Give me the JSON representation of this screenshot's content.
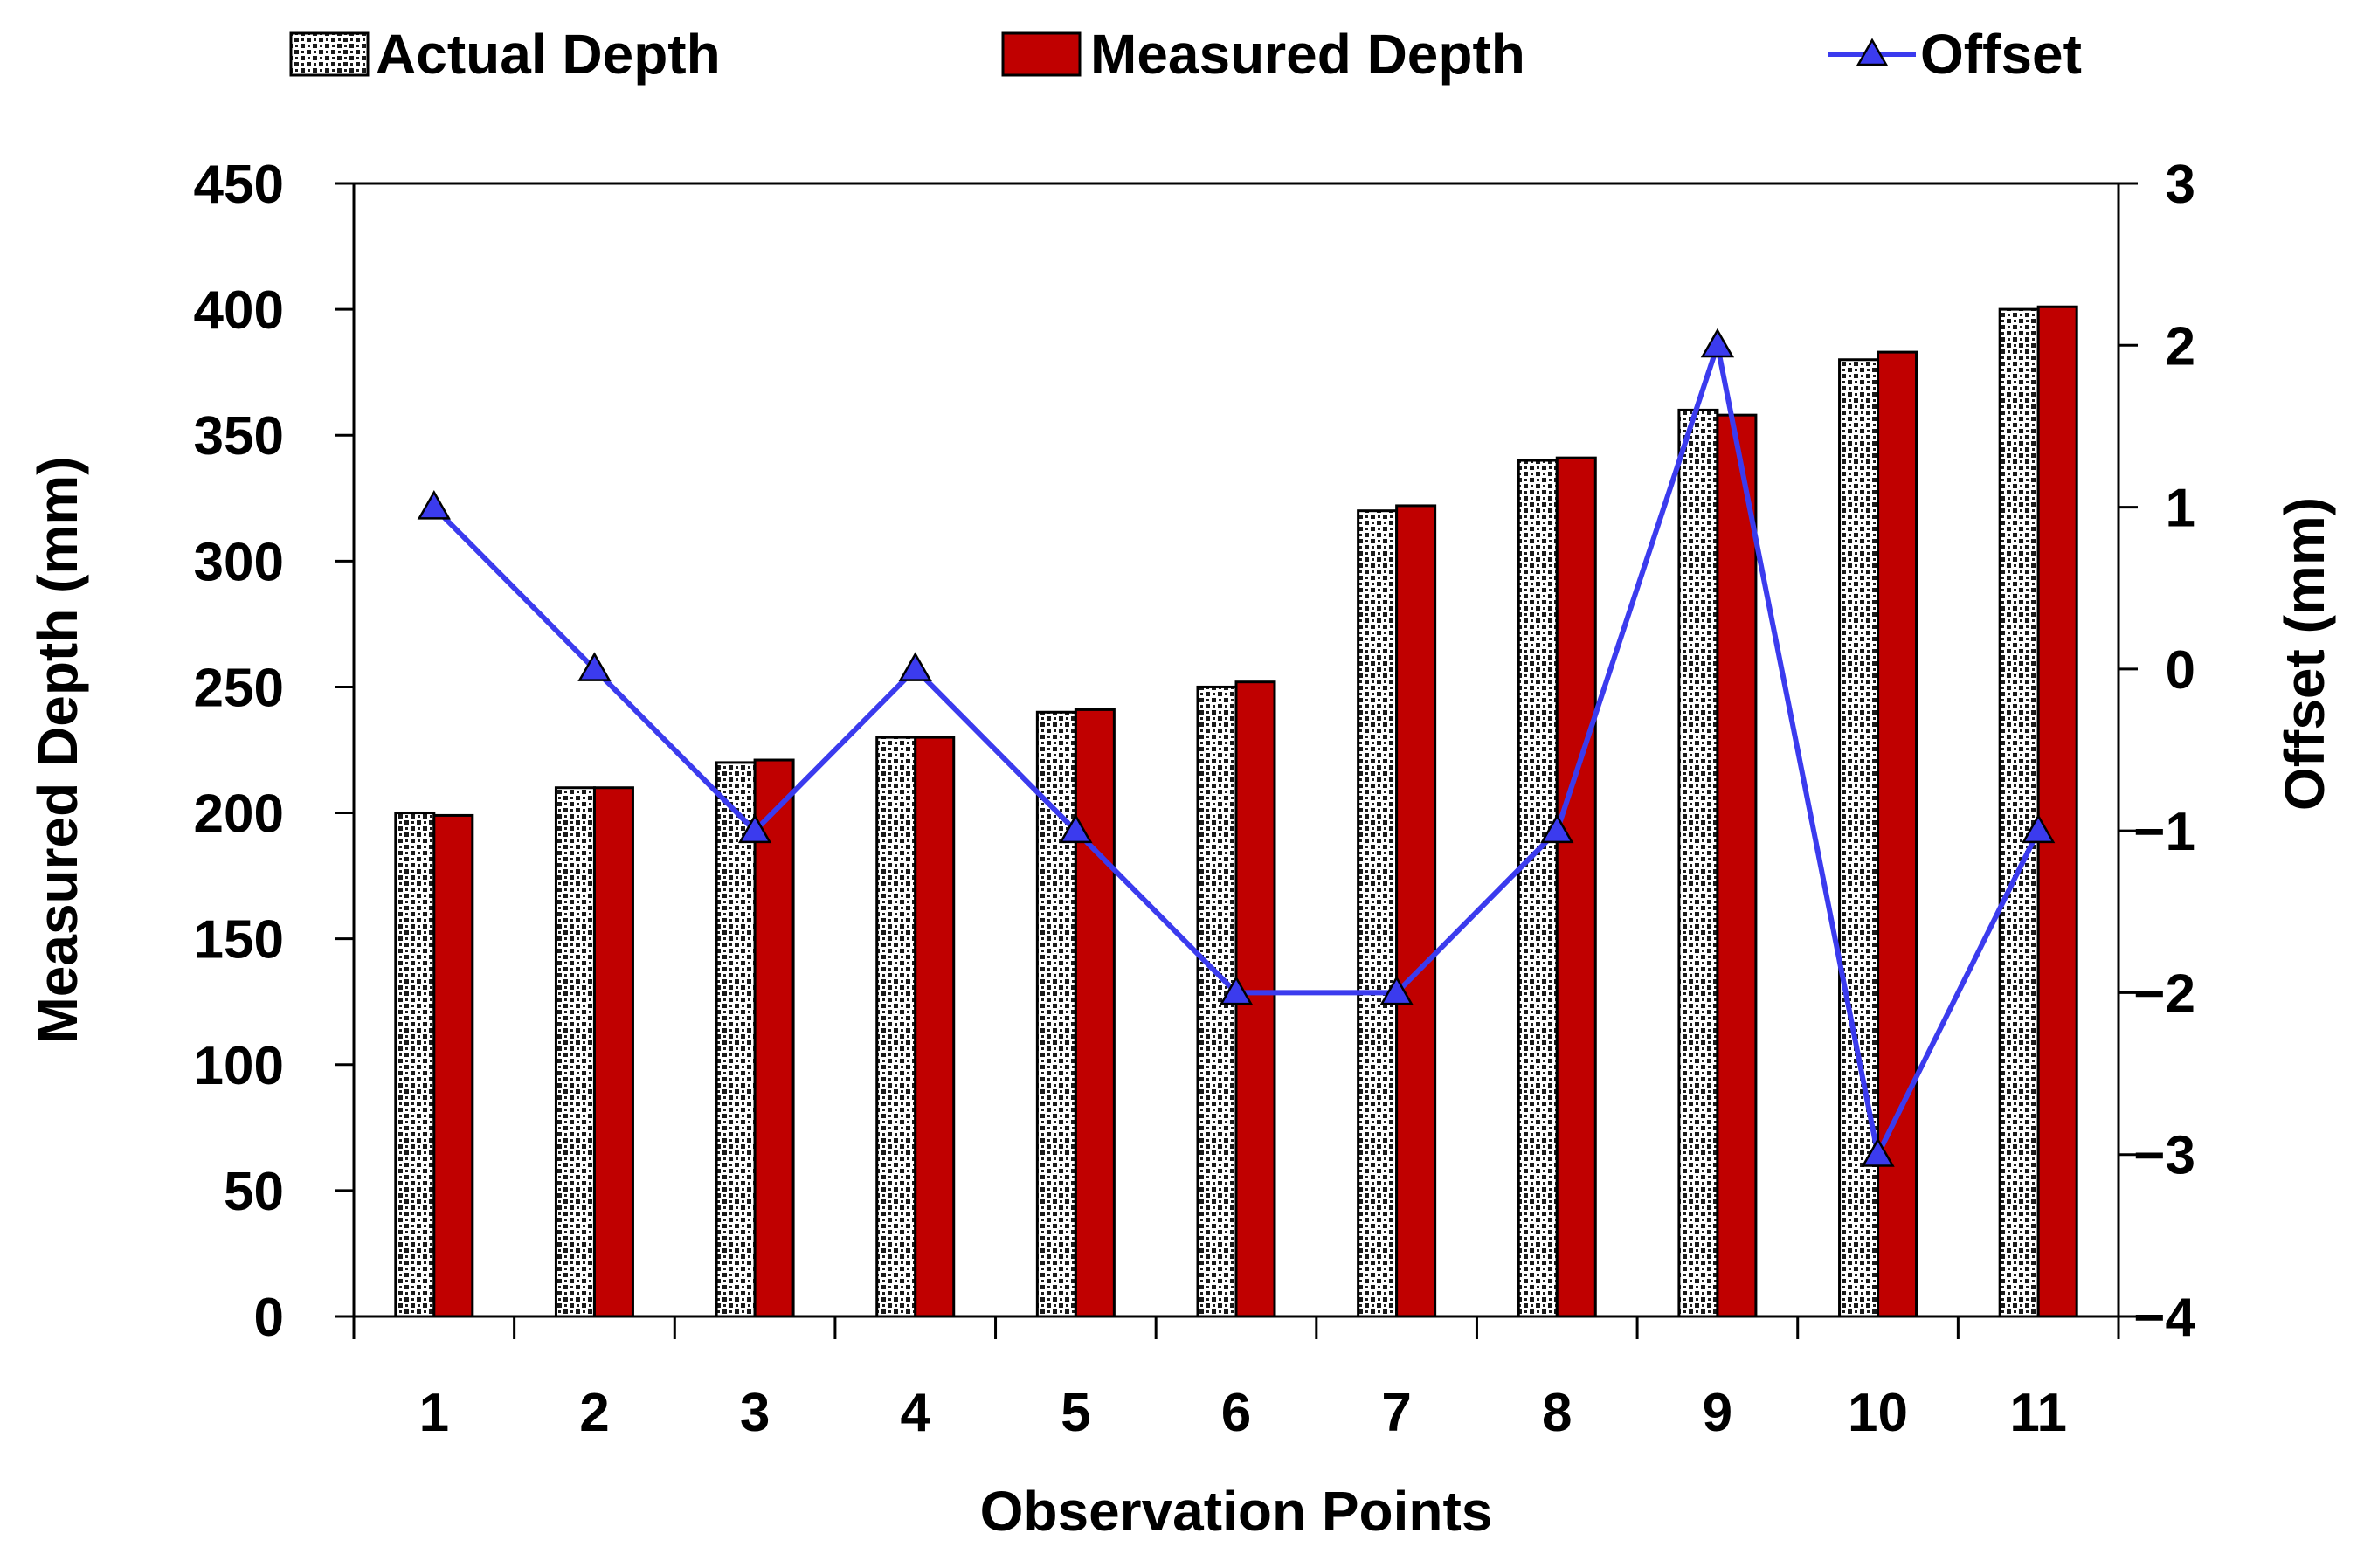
{
  "chart_data": {
    "type": "bar",
    "categories": [
      "1",
      "2",
      "3",
      "4",
      "5",
      "6",
      "7",
      "8",
      "9",
      "10",
      "11"
    ],
    "series": [
      {
        "name": "Actual Depth",
        "kind": "bar",
        "axis": "left",
        "pattern": "dotted",
        "values": [
          200,
          210,
          220,
          230,
          240,
          250,
          320,
          340,
          360,
          380,
          400
        ]
      },
      {
        "name": "Measured Depth",
        "kind": "bar",
        "axis": "left",
        "color": "#c00000",
        "values": [
          199,
          210,
          221,
          230,
          241,
          252,
          322,
          341,
          358,
          383,
          401
        ]
      },
      {
        "name": "Offset",
        "kind": "line",
        "axis": "right",
        "color": "#3b3bee",
        "marker": "triangle",
        "values": [
          1,
          0,
          -1,
          0,
          -1,
          -2,
          -2,
          -1,
          2,
          -3,
          -1
        ]
      }
    ],
    "xlabel": "Observation Points",
    "ylabel": "Measured Depth (mm)",
    "y2label": "Offset (mm)",
    "ylim": [
      0,
      450
    ],
    "yticks": [
      "0",
      "50",
      "100",
      "150",
      "200",
      "250",
      "300",
      "350",
      "400",
      "450"
    ],
    "y2lim": [
      -4,
      3
    ],
    "y2ticks": [
      "−4",
      "−3",
      "−2",
      "−1",
      "0",
      "1",
      "2",
      "3"
    ],
    "legend_position": "top",
    "grid": false
  }
}
